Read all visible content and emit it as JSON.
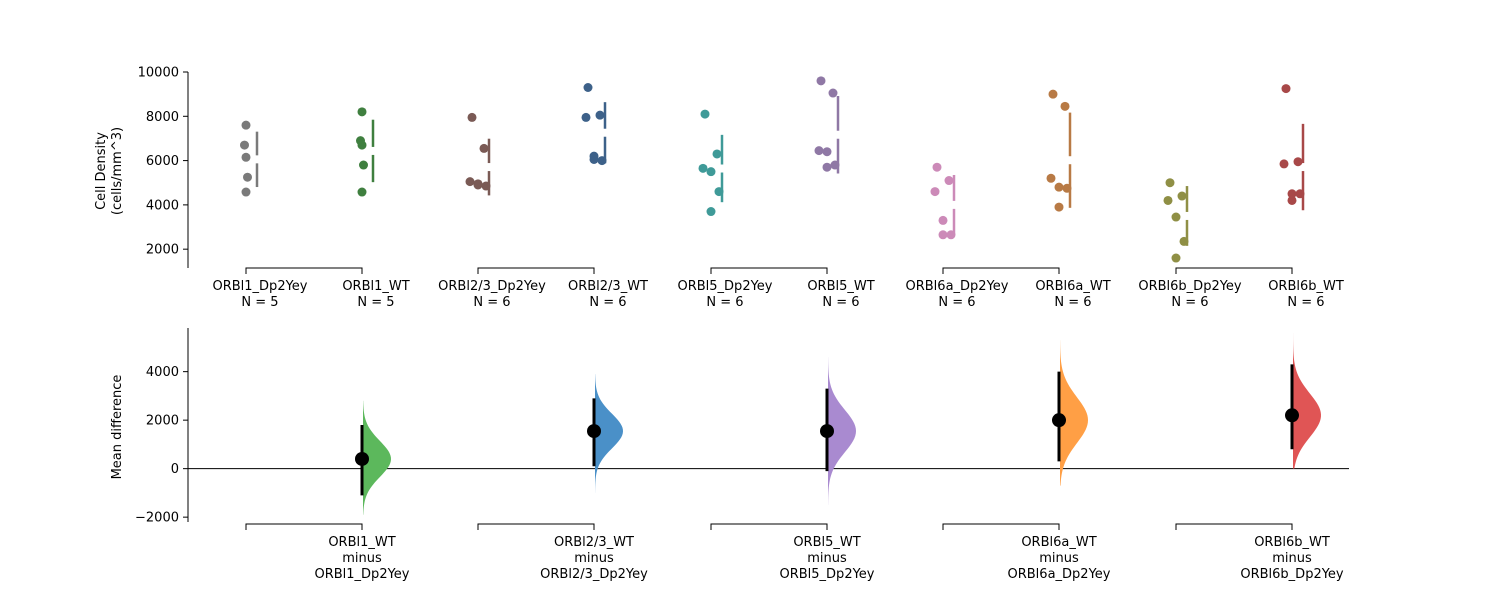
{
  "chart_data": [
    {
      "type": "scatter",
      "title": "",
      "ylabel": "Cell Density\n(cells/mm^3)",
      "ylim": [
        1150,
        10000
      ],
      "yticks": [
        2000,
        4000,
        6000,
        8000,
        10000
      ],
      "groups": [
        {
          "name": "ORBl1_Dp2Yey",
          "n_label": "N = 5",
          "color": "#7a7a7a",
          "points": [
            7600,
            6700,
            6150,
            5250,
            4580
          ],
          "mean": 6056,
          "sd": 1250
        },
        {
          "name": "ORBl1_WT",
          "n_label": "N = 5",
          "color": "#3f7f3f",
          "points": [
            8200,
            6900,
            6700,
            5800,
            4580
          ],
          "mean": 6436,
          "sd": 1410
        },
        {
          "name": "ORBl2/3_Dp2Yey",
          "n_label": "N = 6",
          "color": "#7a5a55",
          "points": [
            7950,
            6550,
            5050,
            4900,
            4850,
            4950
          ],
          "mean": 5708,
          "sd": 1280
        },
        {
          "name": "ORBl2/3_WT",
          "n_label": "N = 6",
          "color": "#3d6189",
          "points": [
            9300,
            8050,
            7950,
            6050,
            6000,
            6200
          ],
          "mean": 7258,
          "sd": 1380
        },
        {
          "name": "ORBl5_Dp2Yey",
          "n_label": "N = 6",
          "color": "#3f9a98",
          "points": [
            8100,
            6300,
            5650,
            5500,
            4600,
            3700
          ],
          "mean": 5642,
          "sd": 1520
        },
        {
          "name": "ORBl5_WT",
          "n_label": "N = 6",
          "color": "#8f78a5",
          "points": [
            9600,
            9050,
            6450,
            6400,
            5800,
            5700
          ],
          "mean": 7167,
          "sd": 1750
        },
        {
          "name": "ORBl6a_Dp2Yey",
          "n_label": "N = 6",
          "color": "#cc8ab8",
          "points": [
            5700,
            5100,
            4600,
            3300,
            2650,
            2650
          ],
          "mean": 4000,
          "sd": 1350
        },
        {
          "name": "ORBl6a_WT",
          "n_label": "N = 6",
          "color": "#b87a45",
          "points": [
            9000,
            8450,
            5200,
            4800,
            4750,
            3900
          ],
          "mean": 6017,
          "sd": 2150
        },
        {
          "name": "ORBl6b_Dp2Yey",
          "n_label": "N = 6",
          "color": "#8f8f45",
          "points": [
            5000,
            4400,
            4200,
            3450,
            2350,
            1600
          ],
          "mean": 3500,
          "sd": 1350
        },
        {
          "name": "ORBl6b_WT",
          "n_label": "N = 6",
          "color": "#a84848",
          "points": [
            9250,
            5950,
            5850,
            4500,
            4500,
            4200
          ],
          "mean": 5708,
          "sd": 1950
        }
      ]
    },
    {
      "type": "area",
      "title": "",
      "ylabel": "Mean difference",
      "ylim": [
        -2200,
        5800
      ],
      "yticks": [
        -2000,
        0,
        2000,
        4000
      ],
      "contrasts": [
        {
          "label_lines": [
            "ORBl1_WT",
            "minus",
            "ORBl1_Dp2Yey"
          ],
          "color": "#5cb85c",
          "diff": 400,
          "ci": [
            -1100,
            1800
          ],
          "dist": [
            -1900,
            2800
          ]
        },
        {
          "label_lines": [
            "ORBl2/3_WT",
            "minus",
            "ORBl2/3_Dp2Yey"
          ],
          "color": "#4a90c8",
          "diff": 1550,
          "ci": [
            100,
            2900
          ],
          "dist": [
            -1000,
            3900
          ]
        },
        {
          "label_lines": [
            "ORBl5_WT",
            "minus",
            "ORBl5_Dp2Yey"
          ],
          "color": "#a98ad0",
          "diff": 1550,
          "ci": [
            -100,
            3300
          ],
          "dist": [
            -1500,
            4600
          ]
        },
        {
          "label_lines": [
            "ORBl6a_WT",
            "minus",
            "ORBl6a_Dp2Yey"
          ],
          "color": "#ff9f45",
          "diff": 2000,
          "ci": [
            300,
            4000
          ],
          "dist": [
            -700,
            5300
          ]
        },
        {
          "label_lines": [
            "ORBl6b_WT",
            "minus",
            "ORBl6b_Dp2Yey"
          ],
          "color": "#e05555",
          "diff": 2200,
          "ci": [
            800,
            4300
          ],
          "dist": [
            0,
            5600
          ]
        }
      ]
    }
  ]
}
